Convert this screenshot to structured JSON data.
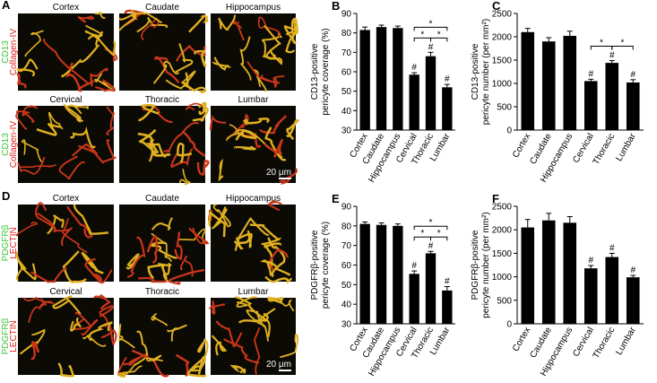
{
  "image_panels": [
    {
      "label": "A",
      "rows": [
        {
          "regions": [
            "Cortex",
            "Caudate",
            "Hippocampus"
          ],
          "channels": [
            "CD13",
            "Collagen-IV"
          ]
        },
        {
          "regions": [
            "Cervical",
            "Thoracic",
            "Lumbar"
          ],
          "channels": [
            "CD13",
            "Collagen-IV"
          ],
          "scale_bar": "20 μm"
        }
      ]
    },
    {
      "label": "D",
      "rows": [
        {
          "regions": [
            "Cortex",
            "Caudate",
            "Hippocampus"
          ],
          "channels": [
            "PDGFRβ",
            "LECTIN"
          ]
        },
        {
          "regions": [
            "Cervical",
            "Thoracic",
            "Lumbar"
          ],
          "channels": [
            "PDGFRβ",
            "LECTIN"
          ],
          "scale_bar": "20 μm"
        }
      ]
    }
  ],
  "chart_data": [
    {
      "type": "bar",
      "label": "B",
      "y_label": [
        "CD13-positive",
        "pericyte coverage (%)"
      ],
      "categories": [
        "Cortex",
        "Caudate",
        "Hippocampus",
        "Cervical",
        "Thoracic",
        "Lumbar"
      ],
      "values": [
        81.5,
        83,
        82.5,
        58.5,
        68,
        52
      ],
      "errors": [
        1.5,
        1,
        1,
        1,
        2,
        1.5
      ],
      "markers": [
        null,
        null,
        null,
        "#",
        "#",
        "#"
      ],
      "color": "#000000",
      "brackets": [
        {
          "between": [
            "Cervical",
            "Lumbar"
          ],
          "label": "*"
        },
        {
          "between": [
            "Cervical",
            "Thoracic"
          ],
          "label": "*"
        },
        {
          "between": [
            "Thoracic",
            "Lumbar"
          ],
          "label": "*"
        }
      ],
      "ylim": [
        30,
        90
      ],
      "yticks": [
        30,
        40,
        50,
        60,
        70,
        80,
        90
      ]
    },
    {
      "type": "bar",
      "label": "C",
      "y_label": [
        "CD13-positive",
        "pericyte number (per mm²)"
      ],
      "categories": [
        "Cortex",
        "Caudate",
        "Hippocampus",
        "Cervical",
        "Thoracic",
        "Lumbar"
      ],
      "values": [
        2100,
        1900,
        2020,
        1050,
        1440,
        1020
      ],
      "errors": [
        80,
        80,
        100,
        40,
        50,
        60
      ],
      "markers": [
        null,
        null,
        null,
        "#",
        "#",
        "#"
      ],
      "color": "#000000",
      "brackets": [
        {
          "between": [
            "Cervical",
            "Thoracic"
          ],
          "label": "*"
        },
        {
          "between": [
            "Thoracic",
            "Lumbar"
          ],
          "label": "*"
        }
      ],
      "ylim": [
        0,
        2500
      ],
      "yticks": [
        0,
        500,
        1000,
        1500,
        2000,
        2500
      ]
    },
    {
      "type": "bar",
      "label": "E",
      "y_label": [
        "PDGFRβ-positive",
        "pericyte coverage (%)"
      ],
      "categories": [
        "Cortex",
        "Caudate",
        "Hippocampus",
        "Cervical",
        "Thoracic",
        "Lumbar"
      ],
      "values": [
        81,
        80.5,
        80,
        55.5,
        66,
        47
      ],
      "errors": [
        1,
        1,
        1,
        1.5,
        1,
        2
      ],
      "markers": [
        null,
        null,
        null,
        "#",
        "#",
        "#"
      ],
      "color": "#000000",
      "brackets": [
        {
          "between": [
            "Cervical",
            "Lumbar"
          ],
          "label": "*"
        },
        {
          "between": [
            "Cervical",
            "Thoracic"
          ],
          "label": "*"
        },
        {
          "between": [
            "Thoracic",
            "Lumbar"
          ],
          "label": "*"
        }
      ],
      "ylim": [
        30,
        90
      ],
      "yticks": [
        30,
        40,
        50,
        60,
        70,
        80,
        90
      ]
    },
    {
      "type": "bar",
      "label": "F",
      "y_label": [
        "PDGFRβ-positive",
        "pericyte number (per mm²)"
      ],
      "categories": [
        "Cortex",
        "Caudate",
        "Hippocampus",
        "Cervical",
        "Thoracic",
        "Lumbar"
      ],
      "values": [
        2050,
        2200,
        2150,
        1180,
        1420,
        990
      ],
      "errors": [
        170,
        150,
        130,
        60,
        80,
        40
      ],
      "markers": [
        null,
        null,
        null,
        "#",
        "#",
        "#"
      ],
      "color": "#000000",
      "brackets": [],
      "ylim": [
        0,
        2500
      ],
      "yticks": [
        0,
        500,
        1000,
        1500,
        2000,
        2500
      ]
    }
  ]
}
